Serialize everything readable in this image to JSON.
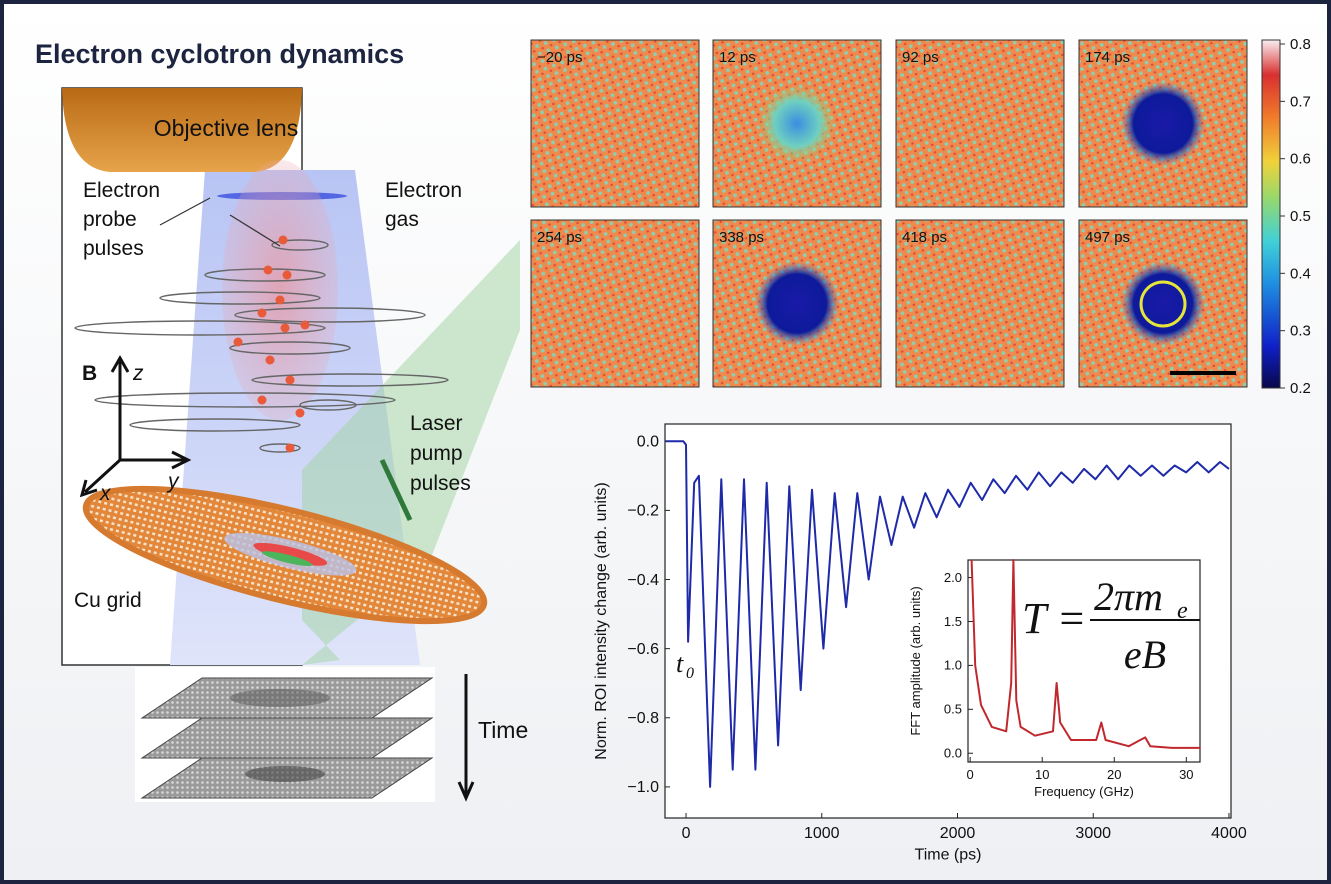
{
  "title": "Electron cyclotron dynamics",
  "diagram": {
    "lens": "Objective lens",
    "probe": [
      "Electron",
      "probe",
      "pulses"
    ],
    "gas": [
      "Electron",
      "gas"
    ],
    "axis_b": "B",
    "axis_z": "z",
    "axis_x": "x",
    "axis_y": "y",
    "laser": [
      "Laser",
      "pump",
      "pulses"
    ],
    "grid": "Cu grid",
    "time": "Time"
  },
  "frames": {
    "labels": [
      "−20 ps",
      "12 ps",
      "92 ps",
      "174 ps",
      "254 ps",
      "338 ps",
      "418 ps",
      "497 ps"
    ]
  },
  "colorbar": {
    "lim": [
      0.2,
      0.807
    ],
    "ticks": [
      0.2,
      0.3,
      0.4,
      0.5,
      0.6,
      0.7,
      0.8
    ]
  },
  "chart_data": [
    {
      "type": "line",
      "xlabel": "Time (ps)",
      "ylabel": "Norm. ROI intensity change (arb. units)",
      "annotation": {
        "text": "t",
        "subscript": "0"
      },
      "color": "#1f2aa8",
      "x": [
        -150,
        -20,
        0,
        15,
        60,
        95,
        177,
        260,
        344,
        427,
        511,
        594,
        678,
        761,
        845,
        928,
        1012,
        1095,
        1179,
        1262,
        1346,
        1429,
        1513,
        1596,
        1680,
        1763,
        1847,
        1930,
        2014,
        2097,
        2181,
        2264,
        2348,
        2431,
        2515,
        2598,
        2682,
        2765,
        2849,
        2932,
        3016,
        3099,
        3183,
        3266,
        3350,
        3433,
        3517,
        3600,
        3684,
        3767,
        3851,
        3934,
        4000
      ],
      "values": [
        0.0,
        0.0,
        -0.01,
        -0.58,
        -0.12,
        -0.1,
        -1.0,
        -0.11,
        -0.95,
        -0.11,
        -0.95,
        -0.12,
        -0.88,
        -0.13,
        -0.72,
        -0.14,
        -0.6,
        -0.15,
        -0.48,
        -0.15,
        -0.4,
        -0.16,
        -0.3,
        -0.16,
        -0.25,
        -0.15,
        -0.22,
        -0.14,
        -0.19,
        -0.12,
        -0.17,
        -0.11,
        -0.15,
        -0.1,
        -0.14,
        -0.09,
        -0.13,
        -0.09,
        -0.12,
        -0.08,
        -0.11,
        -0.07,
        -0.11,
        -0.07,
        -0.1,
        -0.07,
        -0.1,
        -0.07,
        -0.09,
        -0.06,
        -0.09,
        -0.06,
        -0.08
      ],
      "xlim": [
        -155,
        4015
      ],
      "ylim": [
        -1.09,
        0.05
      ],
      "xticks": [
        0,
        1000,
        2000,
        3000,
        4000
      ],
      "yticks": [
        {
          "value": 0,
          "label": "0.0"
        },
        {
          "value": -0.2,
          "label": "−0.2"
        },
        {
          "value": -0.4,
          "label": "−0.4"
        },
        {
          "value": -0.6,
          "label": "−0.6"
        },
        {
          "value": -0.8,
          "label": "−0.8"
        },
        {
          "value": -1.0,
          "label": "−1.0"
        }
      ]
    },
    {
      "type": "line",
      "xlabel": "Frequency (GHz)",
      "ylabel": "FFT amplitude (arb. units)",
      "formula": {
        "lhs": "T =",
        "numerator": "2πm",
        "subscript": "e",
        "denominator": "eB"
      },
      "color": "#c0282d",
      "x": [
        0.2,
        0.7,
        1.5,
        3,
        5,
        5.7,
        6.0,
        6.4,
        7,
        9,
        11.5,
        12,
        12.5,
        14,
        17.5,
        18.2,
        18.8,
        22,
        24.3,
        25,
        28,
        32
      ],
      "values": [
        2.2,
        1.0,
        0.55,
        0.3,
        0.25,
        0.8,
        2.2,
        0.6,
        0.3,
        0.2,
        0.25,
        0.8,
        0.35,
        0.15,
        0.15,
        0.35,
        0.15,
        0.08,
        0.18,
        0.08,
        0.06,
        0.06
      ],
      "xlim": [
        -0.3,
        31.9
      ],
      "ylim": [
        -0.1,
        2.2
      ],
      "xticks": [
        0,
        10,
        20,
        30
      ],
      "yticks": [
        {
          "value": 0,
          "label": "0.0"
        },
        {
          "value": 0.5,
          "label": "0.5"
        },
        {
          "value": 1,
          "label": "1.0"
        },
        {
          "value": 1.5,
          "label": "1.5"
        },
        {
          "value": 2,
          "label": "2.0"
        }
      ]
    }
  ]
}
